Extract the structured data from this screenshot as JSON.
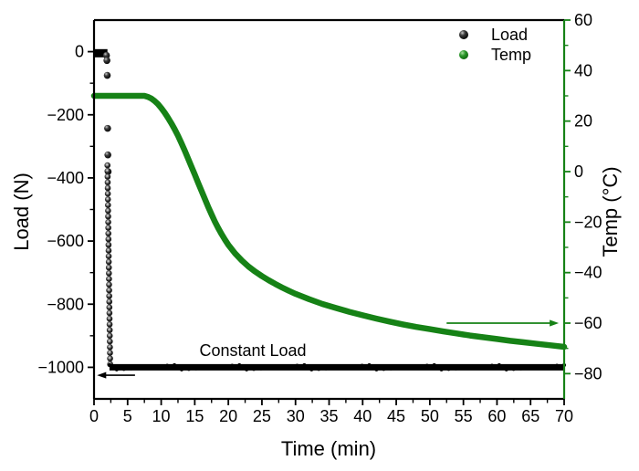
{
  "figure": {
    "background": "#ffffff",
    "accent_green": "#168216",
    "accent_black": "#000000"
  },
  "legend": {
    "items": [
      {
        "label": "Load",
        "marker": "black-sphere-icon",
        "color": "#000000"
      },
      {
        "label": "Temp",
        "marker": "green-sphere-icon",
        "color": "#168216"
      }
    ]
  },
  "chart_data": {
    "type": "scatter+line (dual y-axis)",
    "title": "",
    "xlabel": "Time (min)",
    "x_range": [
      0,
      70
    ],
    "x_major_ticks": [
      0,
      5,
      10,
      15,
      20,
      25,
      30,
      35,
      40,
      45,
      50,
      55,
      60,
      65,
      70
    ],
    "x_minor_step": 2.5,
    "left_axis": {
      "label": "Load (N)",
      "color": "#000000",
      "range": [
        100,
        -1100
      ],
      "major_ticks": [
        0,
        -200,
        -400,
        -600,
        -800,
        -1000
      ],
      "minor_ticks": [
        -100,
        -300,
        -500,
        -700,
        -900
      ]
    },
    "right_axis": {
      "label": "Temp (°C)",
      "color": "#168216",
      "range": [
        60,
        -90
      ],
      "major_ticks": [
        60,
        40,
        20,
        0,
        -20,
        -40,
        -60,
        -80
      ],
      "minor_ticks": [
        50,
        30,
        10,
        -10,
        -30,
        -50,
        -70
      ]
    },
    "series": [
      {
        "name": "Load",
        "axis": "left",
        "style": "scatter",
        "color": "#000000",
        "zero_segment": {
          "t_start": 0,
          "t_end": 2.0,
          "value": -5
        },
        "drop_points": [
          [
            1.85,
            -12
          ],
          [
            1.92,
            -28
          ],
          [
            1.97,
            -75
          ],
          [
            2.02,
            -243
          ],
          [
            2.06,
            -327
          ],
          [
            2.1,
            -380
          ]
        ],
        "drop_column": {
          "t_start": 2.0,
          "t_end": 2.4,
          "load_start": -360,
          "load_end": -995,
          "step": 18
        },
        "plateau": {
          "t_start": 2.3,
          "t_end": 70,
          "value": -1000
        }
      },
      {
        "name": "Temp",
        "axis": "right",
        "style": "line",
        "color": "#168216",
        "points": [
          [
            0,
            30
          ],
          [
            1,
            30
          ],
          [
            2,
            30
          ],
          [
            3,
            30
          ],
          [
            4,
            30
          ],
          [
            5,
            30
          ],
          [
            6,
            30
          ],
          [
            7,
            30
          ],
          [
            7.5,
            30
          ],
          [
            8,
            29.6
          ],
          [
            8.5,
            29.0
          ],
          [
            9,
            28.0
          ],
          [
            9.5,
            26.8
          ],
          [
            10,
            25.2
          ],
          [
            10.5,
            23.4
          ],
          [
            11,
            21.4
          ],
          [
            11.5,
            19.2
          ],
          [
            12,
            16.8
          ],
          [
            12.5,
            14.2
          ],
          [
            13,
            11.4
          ],
          [
            13.5,
            8.4
          ],
          [
            14,
            5.2
          ],
          [
            14.5,
            2.0
          ],
          [
            15,
            -1.2
          ],
          [
            15.5,
            -4.4
          ],
          [
            16,
            -7.6
          ],
          [
            16.5,
            -10.8
          ],
          [
            17,
            -14.0
          ],
          [
            17.5,
            -17.0
          ],
          [
            18,
            -19.8
          ],
          [
            18.5,
            -22.4
          ],
          [
            19,
            -24.8
          ],
          [
            19.5,
            -27.0
          ],
          [
            20,
            -29.0
          ],
          [
            21,
            -32.4
          ],
          [
            22,
            -35.2
          ],
          [
            23,
            -37.6
          ],
          [
            24,
            -39.6
          ],
          [
            25,
            -41.4
          ],
          [
            26,
            -43.0
          ],
          [
            27,
            -44.5
          ],
          [
            28,
            -45.9
          ],
          [
            29,
            -47.2
          ],
          [
            30,
            -48.4
          ],
          [
            32,
            -50.5
          ],
          [
            34,
            -52.4
          ],
          [
            36,
            -54.0
          ],
          [
            38,
            -55.5
          ],
          [
            40,
            -56.9
          ],
          [
            42,
            -58.2
          ],
          [
            44,
            -59.4
          ],
          [
            46,
            -60.5
          ],
          [
            48,
            -61.5
          ],
          [
            50,
            -62.4
          ],
          [
            52,
            -63.3
          ],
          [
            54,
            -64.1
          ],
          [
            56,
            -64.9
          ],
          [
            58,
            -65.6
          ],
          [
            60,
            -66.3
          ],
          [
            62,
            -67.0
          ],
          [
            64,
            -67.6
          ],
          [
            66,
            -68.2
          ],
          [
            68,
            -68.8
          ],
          [
            70,
            -69.4
          ]
        ]
      }
    ],
    "annotations": {
      "constant_load_label": {
        "text": "Constant Load",
        "t": 23.7,
        "load": -965
      },
      "load_arrow": {
        "axis": "left",
        "load": -1025,
        "t_from": 6.1,
        "t_to": 0.45,
        "direction": "left",
        "color": "#000000"
      },
      "temp_arrow": {
        "axis": "right",
        "temp": -60,
        "t_from": 52.5,
        "t_to": 69.2,
        "direction": "right",
        "color": "#168216"
      }
    }
  }
}
